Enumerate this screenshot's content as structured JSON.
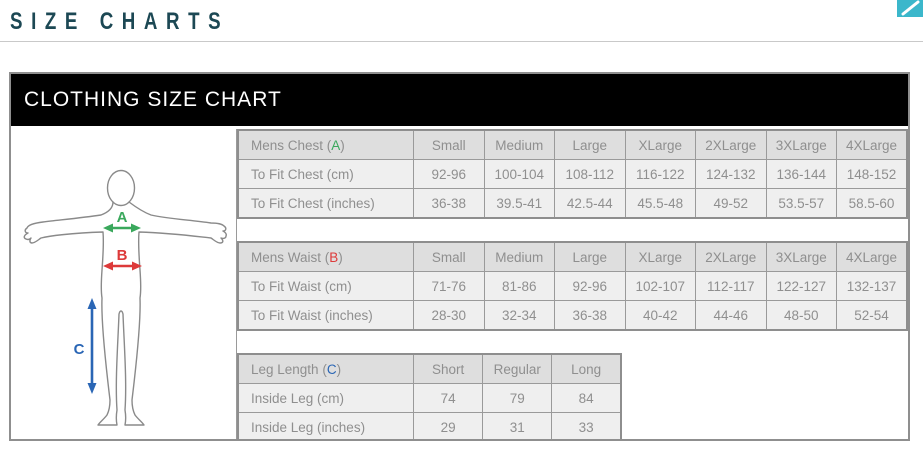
{
  "page": {
    "title": "SIZE CHARTS",
    "title_color": "#1c4854",
    "corner_accent_color": "#3bb7cb"
  },
  "panel": {
    "header": "CLOTHING SIZE CHART"
  },
  "figure": {
    "chest_label": "A",
    "waist_label": "B",
    "leg_label": "C",
    "colors": {
      "chest": "#3aa85c",
      "waist": "#dd3a3a",
      "leg": "#2a66b5",
      "body_outline": "#8a8a8a"
    }
  },
  "tables": [
    {
      "id": "mens-chest",
      "label": "Mens Chest",
      "key": "A",
      "key_color": "#3aa85c",
      "compact": false,
      "columns": [
        "Small",
        "Medium",
        "Large",
        "XLarge",
        "2XLarge",
        "3XLarge",
        "4XLarge"
      ],
      "rows": [
        {
          "label": "To Fit Chest (cm)",
          "values": [
            "92-96",
            "100-104",
            "108-112",
            "116-122",
            "124-132",
            "136-144",
            "148-152"
          ]
        },
        {
          "label": "To Fit Chest (inches)",
          "values": [
            "36-38",
            "39.5-41",
            "42.5-44",
            "45.5-48",
            "49-52",
            "53.5-57",
            "58.5-60"
          ]
        }
      ]
    },
    {
      "id": "mens-waist",
      "label": "Mens Waist",
      "key": "B",
      "key_color": "#dd3a3a",
      "compact": false,
      "columns": [
        "Small",
        "Medium",
        "Large",
        "XLarge",
        "2XLarge",
        "3XLarge",
        "4XLarge"
      ],
      "rows": [
        {
          "label": "To Fit Waist (cm)",
          "values": [
            "71-76",
            "81-86",
            "92-96",
            "102-107",
            "112-117",
            "122-127",
            "132-137"
          ]
        },
        {
          "label": "To Fit Waist (inches)",
          "values": [
            "28-30",
            "32-34",
            "36-38",
            "40-42",
            "44-46",
            "48-50",
            "52-54"
          ]
        }
      ]
    },
    {
      "id": "leg-length",
      "label": "Leg Length",
      "key": "C",
      "key_color": "#2a66b5",
      "compact": true,
      "columns": [
        "Short",
        "Regular",
        "Long"
      ],
      "rows": [
        {
          "label": "Inside Leg (cm)",
          "values": [
            "74",
            "79",
            "84"
          ]
        },
        {
          "label": "Inside Leg (inches)",
          "values": [
            "29",
            "31",
            "33"
          ]
        }
      ]
    }
  ]
}
